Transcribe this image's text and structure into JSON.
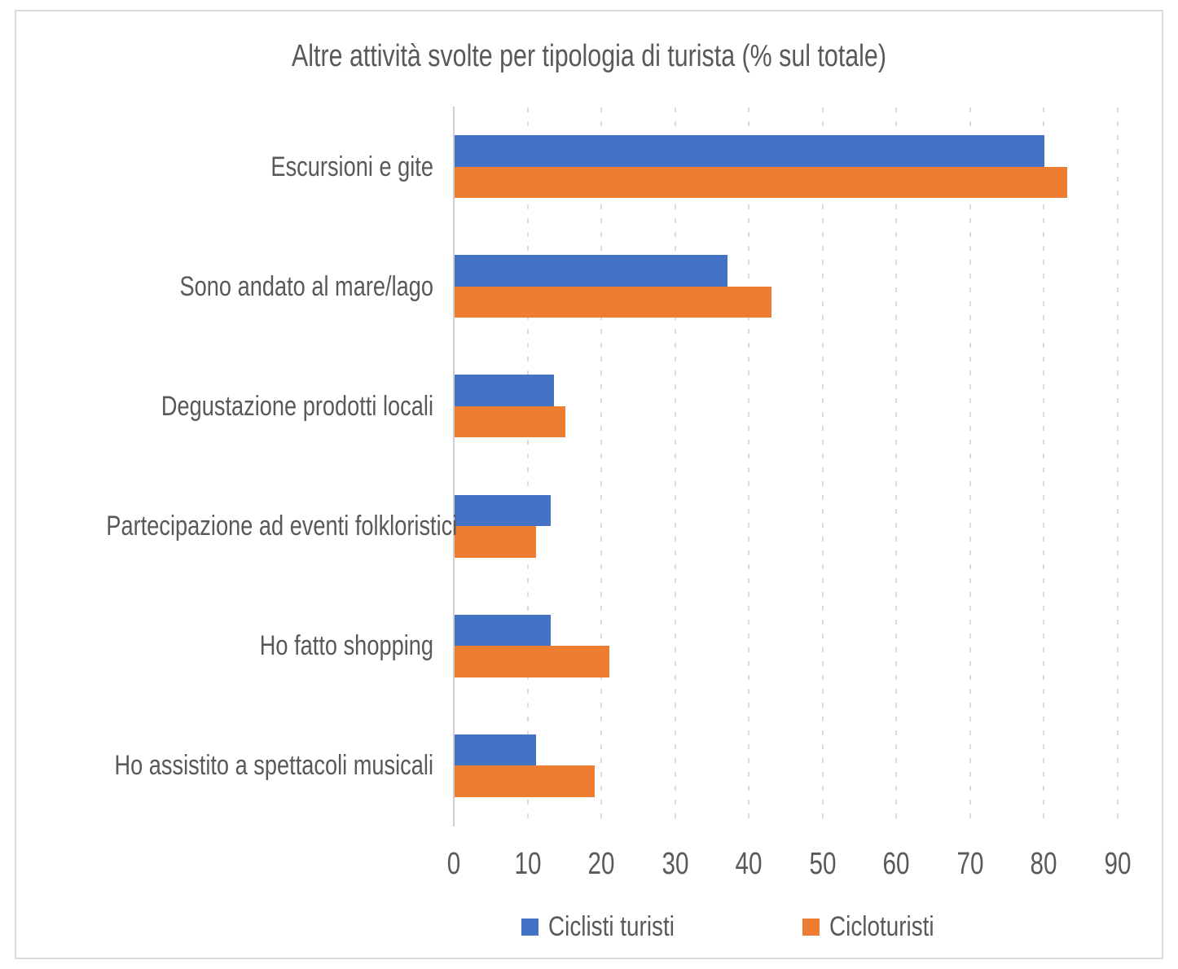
{
  "chart_data": {
    "type": "bar",
    "orientation": "horizontal",
    "title": "Altre attività svolte per tipologia di turista (% sul totale)",
    "categories": [
      "Escursioni e gite",
      "Sono andato al mare/lago",
      "Degustazione prodotti locali",
      "Partecipazione ad eventi folkloristici",
      "Ho fatto shopping",
      "Ho assistito a spettacoli musicali"
    ],
    "series": [
      {
        "name": "Ciclisti turisti",
        "color": "#4472C4",
        "values": [
          80,
          37,
          13.5,
          13,
          13,
          11
        ]
      },
      {
        "name": "Cicloturisti",
        "color": "#ED7D31",
        "values": [
          83,
          43,
          15,
          11,
          21,
          19
        ]
      }
    ],
    "xlabel": "",
    "ylabel": "",
    "xlim": [
      0,
      90
    ],
    "x_ticks": [
      0,
      10,
      20,
      30,
      40,
      50,
      60,
      70,
      80,
      90
    ],
    "grid": "vertical-dashed",
    "legend_position": "bottom"
  },
  "styles": {
    "background": "#FFFFFF",
    "border_color": "#D9D9D9",
    "grid_color": "#DBDBDB",
    "axis_line_color": "#CFCFCF",
    "text_color": "#595959"
  }
}
